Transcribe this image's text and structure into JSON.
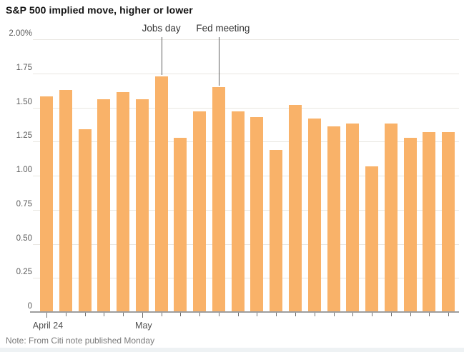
{
  "chart_data": {
    "type": "bar",
    "title": "S&P 500 implied move, higher or lower",
    "unit": "%",
    "values": [
      1.58,
      1.63,
      1.34,
      1.56,
      1.61,
      1.56,
      1.73,
      1.28,
      1.47,
      1.65,
      1.47,
      1.43,
      1.19,
      1.52,
      1.42,
      1.36,
      1.38,
      1.07,
      1.38,
      1.28,
      1.32,
      1.32
    ],
    "x_tick_labels": [
      {
        "index": 0,
        "label": "April 24"
      },
      {
        "index": 5,
        "label": "May"
      }
    ],
    "y_ticks": [
      "2.00%",
      "1.75",
      "1.50",
      "1.25",
      "1.00",
      "0.75",
      "0.50",
      "0.25",
      "0"
    ],
    "ylim": [
      0,
      2.0
    ],
    "y_step": 0.25,
    "grid": true,
    "legend": "none",
    "annotations": [
      {
        "label": "Jobs day",
        "index": 6
      },
      {
        "label": "Fed meeting",
        "index": 9
      }
    ],
    "bar_color": "#f9b269",
    "note": "Note: From Citi note published Monday"
  }
}
